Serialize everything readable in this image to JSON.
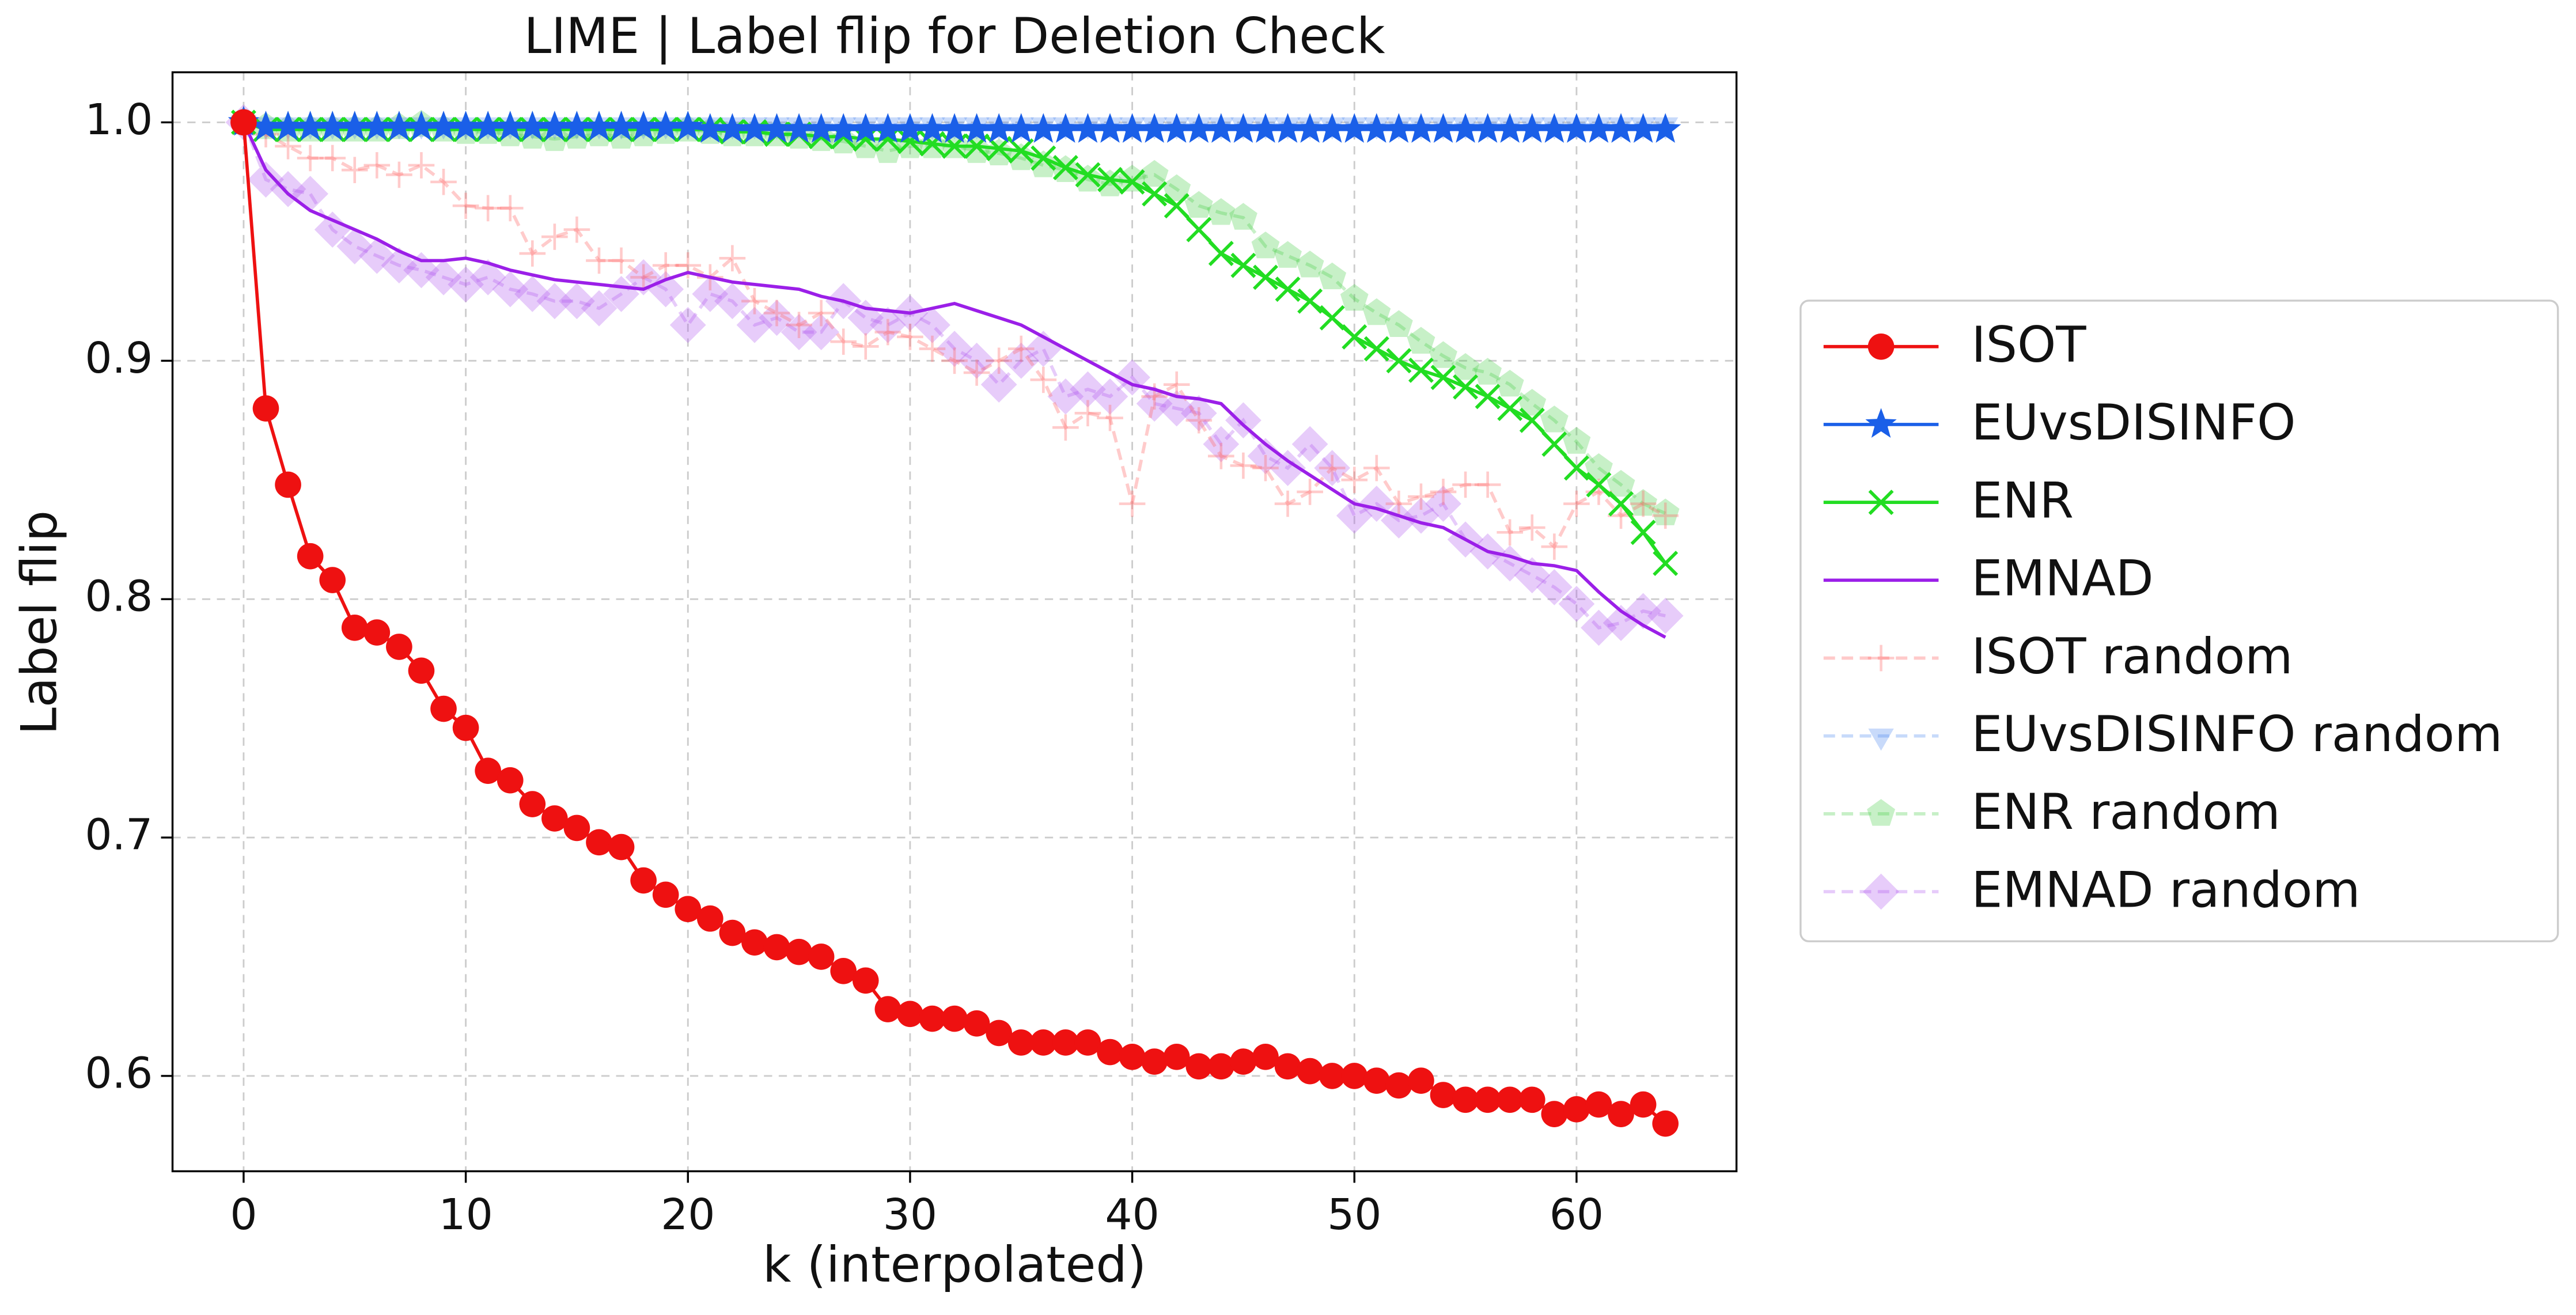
{
  "chart_data": {
    "type": "line",
    "title": "LIME | Label flip for Deletion Check",
    "xlabel": "k (interpolated)",
    "ylabel": "Label flip",
    "xlim": [
      -3.2,
      67.2
    ],
    "ylim": [
      0.56,
      1.021
    ],
    "xticks": [
      0,
      10,
      20,
      30,
      40,
      50,
      60
    ],
    "yticks": [
      0.6,
      0.7,
      0.8,
      0.9,
      {
        "value": 1,
        "label": "1.0"
      }
    ],
    "grid": true,
    "legend": "right",
    "x": [
      0,
      1,
      2,
      3,
      4,
      5,
      6,
      7,
      8,
      9,
      10,
      11,
      12,
      13,
      14,
      15,
      16,
      17,
      18,
      19,
      20,
      21,
      22,
      23,
      24,
      25,
      26,
      27,
      28,
      29,
      30,
      31,
      32,
      33,
      34,
      35,
      36,
      37,
      38,
      39,
      40,
      41,
      42,
      43,
      44,
      45,
      46,
      47,
      48,
      49,
      50,
      51,
      52,
      53,
      54,
      55,
      56,
      57,
      58,
      59,
      60,
      61,
      62,
      63,
      64
    ],
    "series": [
      {
        "name": "ISOT",
        "color": "#ee1111",
        "marker": "circle",
        "linestyle": "solid",
        "alpha": 1,
        "values": [
          1.0,
          0.88,
          0.848,
          0.818,
          0.808,
          0.788,
          0.786,
          0.78,
          0.77,
          0.754,
          0.746,
          0.728,
          0.724,
          0.714,
          0.708,
          0.704,
          0.698,
          0.696,
          0.682,
          0.676,
          0.67,
          0.666,
          0.66,
          0.656,
          0.654,
          0.652,
          0.65,
          0.644,
          0.64,
          0.628,
          0.626,
          0.624,
          0.624,
          0.622,
          0.618,
          0.614,
          0.614,
          0.614,
          0.614,
          0.61,
          0.608,
          0.606,
          0.608,
          0.604,
          0.604,
          0.606,
          0.608,
          0.604,
          0.602,
          0.6,
          0.6,
          0.598,
          0.596,
          0.598,
          0.592,
          0.59,
          0.59,
          0.59,
          0.59,
          0.584,
          0.586,
          0.588,
          0.584,
          0.588,
          0.58
        ]
      },
      {
        "name": "EUvsDISINFO",
        "color": "#1a5fe8",
        "marker": "star",
        "linestyle": "solid",
        "alpha": 1,
        "values": [
          1.0,
          0.998,
          0.998,
          0.998,
          0.998,
          0.998,
          0.998,
          0.998,
          0.998,
          0.998,
          0.998,
          0.998,
          0.998,
          0.998,
          0.998,
          0.998,
          0.998,
          0.998,
          0.998,
          0.998,
          0.998,
          0.997,
          0.997,
          0.997,
          0.997,
          0.997,
          0.997,
          0.997,
          0.997,
          0.997,
          0.997,
          0.997,
          0.997,
          0.997,
          0.997,
          0.997,
          0.997,
          0.997,
          0.997,
          0.997,
          0.997,
          0.997,
          0.997,
          0.997,
          0.997,
          0.997,
          0.997,
          0.997,
          0.997,
          0.997,
          0.997,
          0.997,
          0.997,
          0.997,
          0.997,
          0.997,
          0.997,
          0.997,
          0.997,
          0.997,
          0.997,
          0.997,
          0.997,
          0.997,
          0.997
        ]
      },
      {
        "name": "ENR",
        "color": "#22dd22",
        "marker": "x",
        "linestyle": "solid",
        "alpha": 1,
        "values": [
          1.0,
          0.997,
          0.997,
          0.997,
          0.997,
          0.997,
          0.997,
          0.997,
          0.997,
          0.997,
          0.997,
          0.997,
          0.997,
          0.997,
          0.997,
          0.997,
          0.997,
          0.997,
          0.997,
          0.997,
          0.997,
          0.997,
          0.996,
          0.996,
          0.995,
          0.995,
          0.994,
          0.994,
          0.993,
          0.993,
          0.992,
          0.991,
          0.99,
          0.99,
          0.989,
          0.988,
          0.985,
          0.981,
          0.978,
          0.976,
          0.975,
          0.97,
          0.965,
          0.955,
          0.945,
          0.94,
          0.935,
          0.93,
          0.925,
          0.918,
          0.91,
          0.905,
          0.9,
          0.896,
          0.893,
          0.889,
          0.885,
          0.88,
          0.875,
          0.865,
          0.855,
          0.848,
          0.84,
          0.828,
          0.815
        ]
      },
      {
        "name": "EMNAD",
        "color": "#9b1fe8",
        "marker": "none",
        "linestyle": "solid",
        "alpha": 1,
        "values": [
          1.0,
          0.98,
          0.97,
          0.963,
          0.959,
          0.955,
          0.951,
          0.946,
          0.942,
          0.942,
          0.943,
          0.941,
          0.938,
          0.936,
          0.934,
          0.933,
          0.932,
          0.931,
          0.93,
          0.934,
          0.937,
          0.935,
          0.933,
          0.932,
          0.931,
          0.93,
          0.927,
          0.925,
          0.922,
          0.921,
          0.92,
          0.922,
          0.924,
          0.921,
          0.918,
          0.915,
          0.91,
          0.905,
          0.9,
          0.895,
          0.89,
          0.888,
          0.885,
          0.884,
          0.882,
          0.873,
          0.865,
          0.858,
          0.852,
          0.846,
          0.84,
          0.838,
          0.835,
          0.832,
          0.83,
          0.825,
          0.82,
          0.818,
          0.815,
          0.814,
          0.812,
          0.803,
          0.795,
          0.789,
          0.784
        ]
      },
      {
        "name": "ISOT random",
        "color": "#ff6b6b",
        "marker": "plus",
        "linestyle": "dashed",
        "alpha": 0.35,
        "values": [
          1.0,
          0.995,
          0.99,
          0.985,
          0.985,
          0.98,
          0.982,
          0.978,
          0.982,
          0.975,
          0.965,
          0.964,
          0.964,
          0.945,
          0.952,
          0.955,
          0.942,
          0.942,
          0.935,
          0.94,
          0.94,
          0.935,
          0.943,
          0.925,
          0.92,
          0.915,
          0.92,
          0.908,
          0.906,
          0.912,
          0.91,
          0.905,
          0.9,
          0.895,
          0.9,
          0.905,
          0.892,
          0.872,
          0.878,
          0.876,
          0.84,
          0.885,
          0.89,
          0.875,
          0.86,
          0.856,
          0.855,
          0.84,
          0.845,
          0.855,
          0.85,
          0.855,
          0.84,
          0.843,
          0.845,
          0.848,
          0.848,
          0.828,
          0.83,
          0.822,
          0.84,
          0.845,
          0.835,
          0.84,
          0.835
        ]
      },
      {
        "name": "EUvsDISINFO random",
        "color": "#4a86f0",
        "marker": "triangle-down",
        "linestyle": "dashed",
        "alpha": 0.3,
        "values": [
          1.0,
          0.999,
          0.999,
          0.999,
          0.999,
          0.999,
          0.999,
          0.999,
          0.999,
          0.999,
          0.999,
          0.999,
          0.999,
          0.999,
          0.999,
          0.999,
          0.999,
          0.999,
          0.999,
          0.999,
          0.999,
          0.999,
          0.999,
          0.999,
          0.999,
          0.999,
          0.999,
          0.999,
          0.999,
          0.999,
          0.999,
          0.999,
          0.999,
          0.999,
          0.999,
          0.999,
          0.999,
          0.999,
          0.999,
          0.999,
          0.999,
          0.999,
          0.999,
          0.999,
          0.999,
          0.999,
          0.999,
          0.999,
          0.999,
          0.999,
          0.999,
          0.999,
          0.999,
          0.999,
          0.999,
          0.999,
          0.999,
          0.999,
          0.999,
          0.999,
          0.999,
          0.999,
          0.999,
          0.999,
          0.999
        ]
      },
      {
        "name": "ENR random",
        "color": "#44cc44",
        "marker": "pentagon",
        "linestyle": "dashed",
        "alpha": 0.3,
        "values": [
          1.0,
          0.998,
          0.997,
          0.997,
          0.997,
          0.997,
          0.997,
          0.998,
          0.999,
          0.997,
          0.996,
          0.996,
          0.995,
          0.994,
          0.993,
          0.994,
          0.995,
          0.994,
          0.995,
          0.996,
          0.997,
          0.996,
          0.995,
          0.995,
          0.995,
          0.994,
          0.993,
          0.992,
          0.99,
          0.988,
          0.99,
          0.99,
          0.99,
          0.988,
          0.987,
          0.985,
          0.982,
          0.98,
          0.976,
          0.974,
          0.976,
          0.978,
          0.972,
          0.965,
          0.962,
          0.96,
          0.948,
          0.944,
          0.94,
          0.935,
          0.926,
          0.92,
          0.915,
          0.908,
          0.902,
          0.897,
          0.895,
          0.89,
          0.882,
          0.875,
          0.866,
          0.855,
          0.848,
          0.84,
          0.836
        ]
      },
      {
        "name": "EMNAD random",
        "color": "#b057f0",
        "marker": "diamond",
        "linestyle": "dashed",
        "alpha": 0.3,
        "values": [
          1.0,
          0.976,
          0.972,
          0.97,
          0.955,
          0.948,
          0.944,
          0.94,
          0.938,
          0.935,
          0.932,
          0.935,
          0.93,
          0.928,
          0.925,
          0.925,
          0.922,
          0.928,
          0.935,
          0.93,
          0.915,
          0.928,
          0.925,
          0.915,
          0.918,
          0.912,
          0.912,
          0.925,
          0.918,
          0.915,
          0.92,
          0.915,
          0.905,
          0.9,
          0.89,
          0.9,
          0.905,
          0.885,
          0.888,
          0.885,
          0.893,
          0.882,
          0.88,
          0.878,
          0.865,
          0.875,
          0.86,
          0.855,
          0.865,
          0.855,
          0.835,
          0.84,
          0.833,
          0.835,
          0.84,
          0.825,
          0.82,
          0.815,
          0.81,
          0.805,
          0.798,
          0.788,
          0.79,
          0.795,
          0.793
        ]
      }
    ]
  }
}
